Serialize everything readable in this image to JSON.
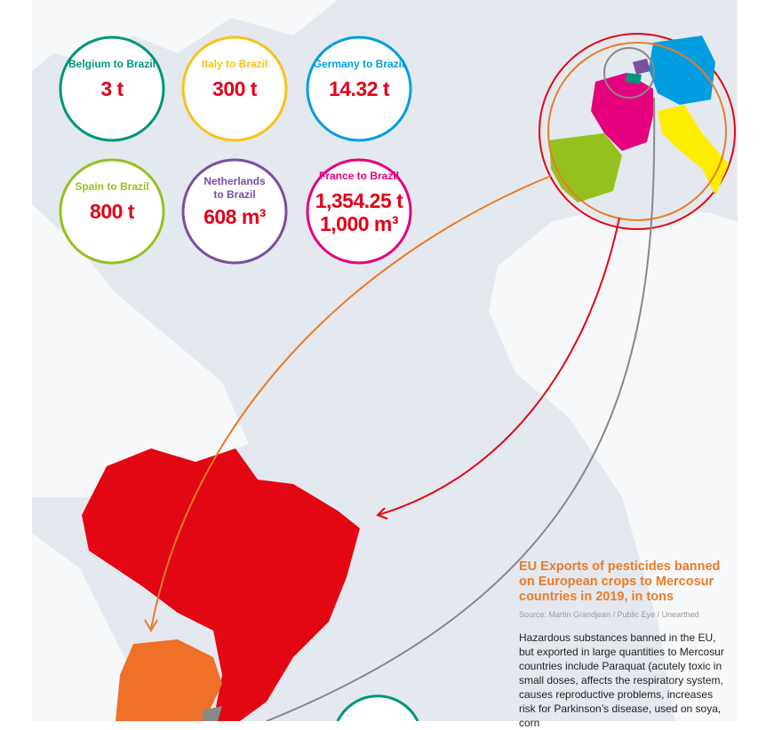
{
  "flows": [
    {
      "label": "Belgium to Brazil",
      "amounts": [
        "3 t"
      ]
    },
    {
      "label": "Italy to Brazil",
      "amounts": [
        "300 t"
      ]
    },
    {
      "label": "Germany to Brazil",
      "amounts": [
        "14.32 t"
      ]
    },
    {
      "label": "Spain to Brazil",
      "amounts": [
        "800 t"
      ]
    },
    {
      "label": "Netherlands to Brazil",
      "amounts": [
        "608 m³"
      ]
    },
    {
      "label": "France to Brazil",
      "amounts": [
        "1,354.25 t",
        "1,000 m³"
      ]
    }
  ],
  "caption": {
    "title": "EU Exports of pesticides banned on European crops to Mercosur countries in 2019, in tons",
    "source": "Source: Martin Grandjean / Public Eye / Unearthed",
    "body": "Hazardous substances banned in the EU, but exported in large quantities to Mercosur countries include Paraquat (acutely toxic in small doses, affects the respiratory system, causes reproductive problems, increases risk for Parkinson’s disease, used on soya, corn"
  }
}
